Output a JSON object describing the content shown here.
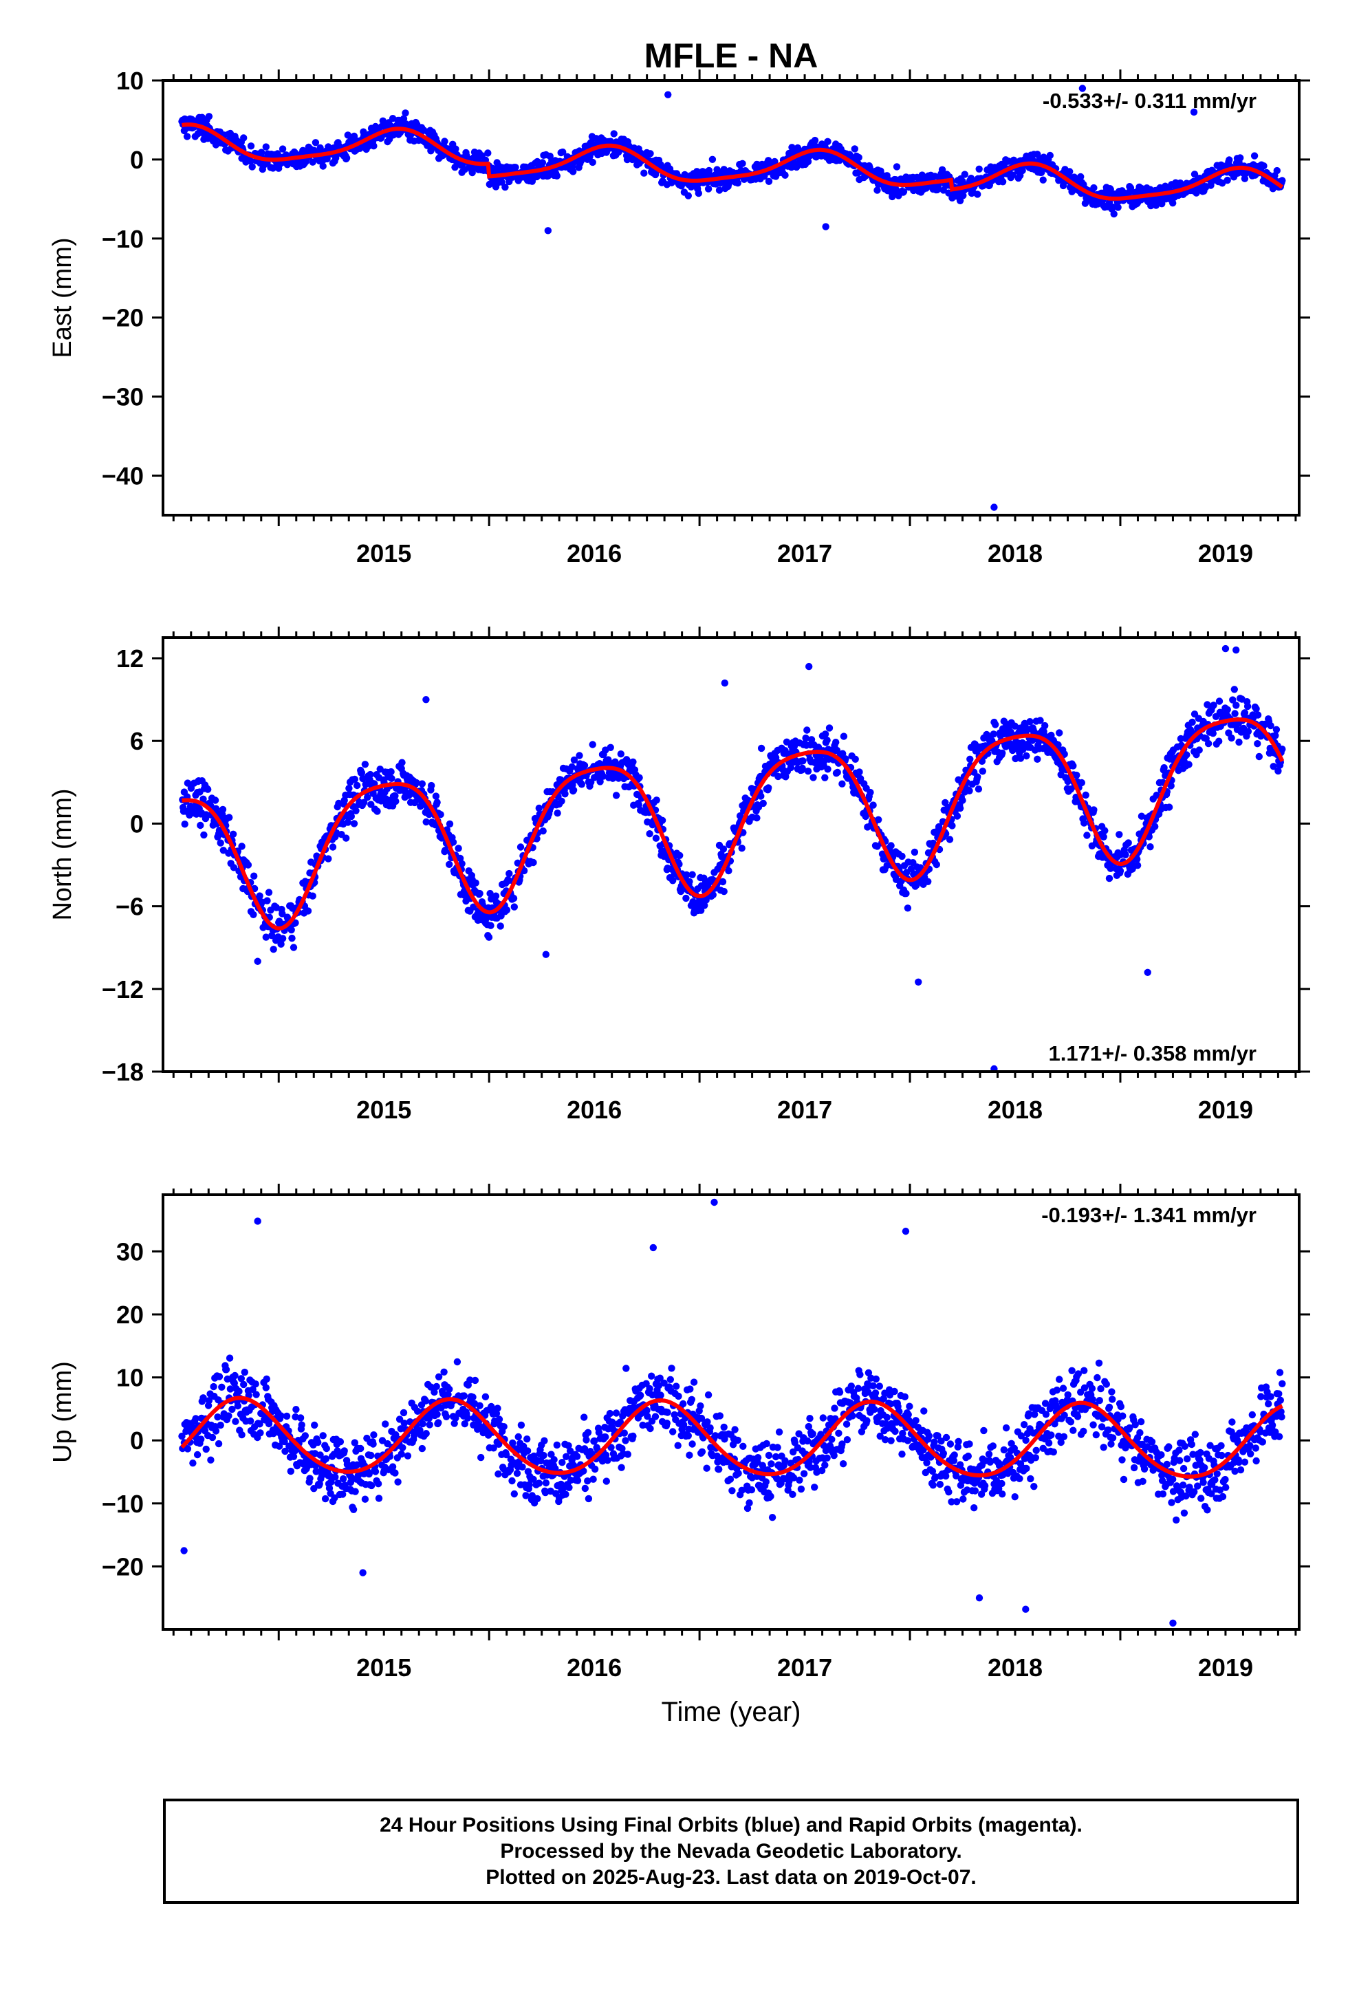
{
  "title": "MFLE - NA",
  "colors": {
    "final_orbits": "#0000ff",
    "model": "#ff0000",
    "frame": "#000000"
  },
  "chart_data": [
    {
      "type": "scatter",
      "name": "east",
      "ylabel": "East (mm)",
      "xlabel": "",
      "xlim": [
        2014.45,
        2019.85
      ],
      "ylim": [
        -45,
        10
      ],
      "yticks": [
        "10",
        "0",
        "−10",
        "−20",
        "−30",
        "−40"
      ],
      "ytick_values": [
        10,
        0,
        -10,
        -20,
        -30,
        -40
      ],
      "xticks": [
        "2015",
        "2016",
        "2017",
        "2018",
        "2019"
      ],
      "rate": "-0.533+/- 0.311 mm/yr",
      "rate_position": "top-right",
      "model": {
        "mean": 0.6,
        "trend_per_year": -0.533,
        "ref_year": 2017.15,
        "amp1": 2.0,
        "phase1": 0.55,
        "amp2": 0.5,
        "phase2": 0.1,
        "steps": [
          {
            "t": 2016.0,
            "dy": -1.6
          },
          {
            "t": 2018.2,
            "dy": -1.2
          }
        ],
        "scatter_sd": 1.3
      },
      "outliers": [
        [
          2018.4,
          -44
        ],
        [
          2016.28,
          -9
        ],
        [
          2018.82,
          9
        ],
        [
          2016.85,
          8.2
        ],
        [
          2017.6,
          -8.5
        ],
        [
          2019.35,
          6
        ]
      ]
    },
    {
      "type": "scatter",
      "name": "north",
      "ylabel": "North (mm)",
      "xlabel": "",
      "xlim": [
        2014.45,
        2019.85
      ],
      "ylim": [
        -18,
        13.5
      ],
      "yticks": [
        "12",
        "6",
        "0",
        "−6",
        "−12",
        "−18"
      ],
      "ytick_values": [
        12,
        6,
        0,
        -6,
        -12,
        -18
      ],
      "xticks": [
        "2015",
        "2016",
        "2017",
        "2018",
        "2019"
      ],
      "rate": "1.171+/- 0.358 mm/yr",
      "rate_position": "bottom-right",
      "model": {
        "mean": 0.8,
        "trend_per_year": 1.171,
        "ref_year": 2017.15,
        "amp1": 4.9,
        "phase1": 0.51,
        "amp2": 1.0,
        "phase2": 0.75,
        "steps": [],
        "scatter_sd": 1.5
      },
      "outliers": [
        [
          2018.4,
          -17.8
        ],
        [
          2018.04,
          -11.5
        ],
        [
          2019.13,
          -10.8
        ],
        [
          2016.27,
          -9.5
        ],
        [
          2015.7,
          9.0
        ],
        [
          2017.52,
          11.4
        ],
        [
          2019.55,
          12.6
        ],
        [
          2019.5,
          12.7
        ],
        [
          2017.12,
          10.2
        ],
        [
          2014.9,
          -10.0
        ]
      ]
    },
    {
      "type": "scatter",
      "name": "up",
      "ylabel": "Up (mm)",
      "xlabel": "Time (year)",
      "xlim": [
        2014.45,
        2019.85
      ],
      "ylim": [
        -30,
        39
      ],
      "yticks": [
        "30",
        "20",
        "10",
        "0",
        "−10",
        "−20"
      ],
      "ytick_values": [
        30,
        20,
        10,
        0,
        -10,
        -20
      ],
      "xticks": [
        "2015",
        "2016",
        "2017",
        "2018",
        "2019"
      ],
      "rate": "-0.193+/- 1.341 mm/yr",
      "rate_position": "top-right",
      "model": {
        "mean": 0.0,
        "trend_per_year": -0.193,
        "ref_year": 2017.15,
        "amp1": 5.8,
        "phase1": 0.82,
        "amp2": 0.5,
        "phase2": 0.3,
        "steps": [],
        "scatter_sd": 5.0
      },
      "outliers": [
        [
          2014.9,
          34.8
        ],
        [
          2017.07,
          37.8
        ],
        [
          2016.78,
          30.6
        ],
        [
          2017.98,
          33.2
        ],
        [
          2019.25,
          -29
        ],
        [
          2018.55,
          -26.8
        ],
        [
          2018.33,
          -25
        ],
        [
          2015.4,
          -21
        ],
        [
          2014.55,
          -17.5
        ]
      ]
    }
  ],
  "footer": {
    "line1": "24 Hour Positions Using Final Orbits (blue) and Rapid Orbits (magenta).",
    "line2": "Processed by the Nevada Geodetic Laboratory.",
    "line3": "Plotted on 2025-Aug-23. Last data on 2019-Oct-07."
  }
}
